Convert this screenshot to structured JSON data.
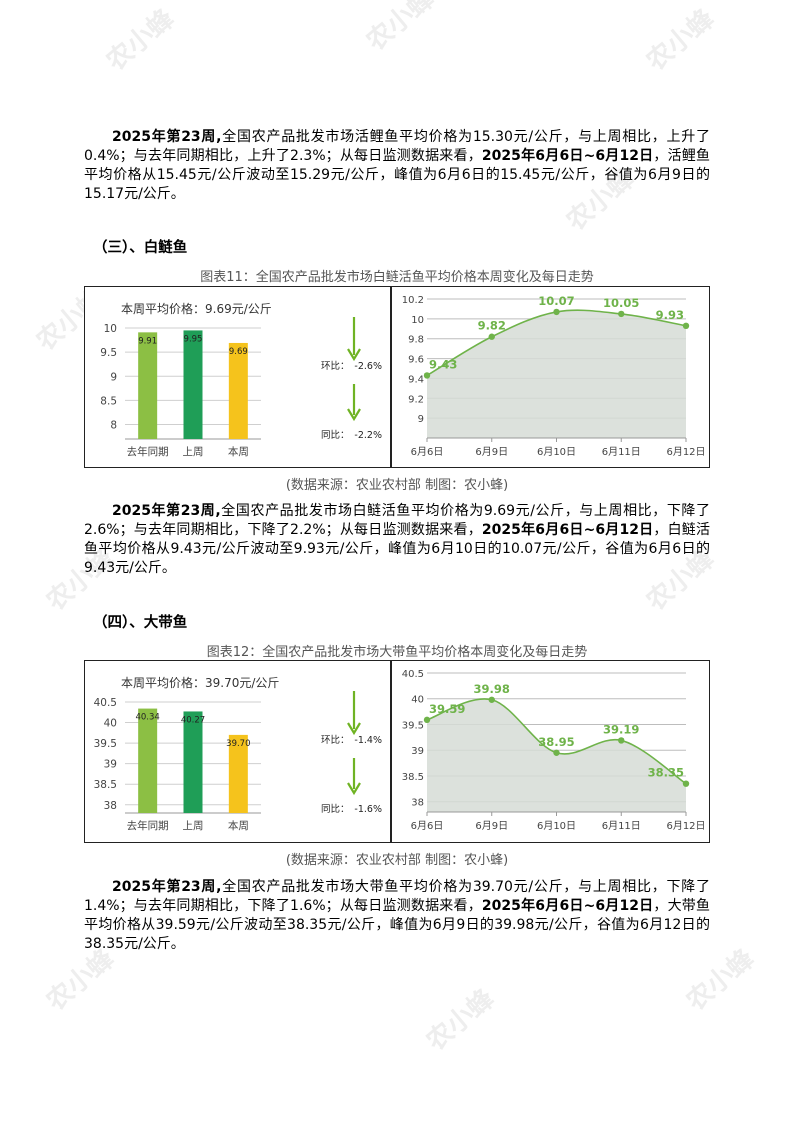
{
  "watermark": "农小蜂",
  "sections": [
    {
      "heading": "",
      "caption": "",
      "source": "",
      "para": {
        "b1": "2025年第23周,",
        "t1": "全国农产品批发市场活鲤鱼平均价格为15.30元/公斤，与上周相比，上升了0.4%；与去年同期相比，上升了2.3%；从每日监测数据来看，",
        "b2": "2025年6月6日~6月12日",
        "t2": "，活鲤鱼平均价格从15.45元/公斤波动至15.29元/公斤，峰值为6月6日的15.45元/公斤，谷值为6月9日的15.17元/公斤。"
      }
    },
    {
      "heading": "（三）、白鲢鱼",
      "caption": "图表11：全国农产品批发市场白鲢活鱼平均价格本周变化及每日走势",
      "source": "(数据来源：农业农村部    制图：农小蜂)",
      "para": {
        "b1": "2025年第23周,",
        "t1": "全国农产品批发市场白鲢活鱼平均价格为9.69元/公斤，与上周相比，下降了2.6%；与去年同期相比，下降了2.2%；从每日监测数据来看，",
        "b2": "2025年6月6日~6月12日",
        "t2": "，白鲢活鱼平均价格从9.43元/公斤波动至9.93元/公斤，峰值为6月10日的10.07元/公斤，谷值为6月6日的9.43元/公斤。"
      }
    },
    {
      "heading": "（四）、大带鱼",
      "caption": "图表12：全国农产品批发市场大带鱼平均价格本周变化及每日走势",
      "source": "(数据来源：农业农村部    制图：农小蜂)",
      "para": {
        "b1": "2025年第23周,",
        "t1": "全国农产品批发市场大带鱼平均价格为39.70元/公斤，与上周相比，下降了1.4%；与去年同期相比，下降了1.6%；从每日监测数据来看，",
        "b2": "2025年6月6日~6月12日",
        "t2": "，大带鱼平均价格从39.59元/公斤波动至38.35元/公斤，峰值为6月9日的39.98元/公斤，谷值为6月12日的38.35元/公斤。"
      }
    }
  ],
  "chart_data": [
    {
      "type": "bar",
      "title": "本周平均价格：9.69元/公斤",
      "categories": [
        "去年同期",
        "上周",
        "本周"
      ],
      "values": [
        9.91,
        9.95,
        9.69
      ],
      "value_labels": [
        "9.91",
        "9.95",
        "9.69"
      ],
      "ylim": [
        7.7,
        10
      ],
      "yticks": [
        8,
        8.5,
        9,
        9.5,
        10
      ],
      "ytick_labels": [
        "8",
        "8.5",
        "9",
        "9.5",
        "10"
      ],
      "colors": [
        "#8cbf44",
        "#1f9e57",
        "#f5c31c"
      ],
      "grid": true,
      "legend": "none",
      "annotations": [
        {
          "label": "环比：",
          "value": "-2.6%"
        },
        {
          "label": "同比：",
          "value": "-2.2%"
        }
      ],
      "arrow_color": "#6fb324"
    },
    {
      "type": "area",
      "x": [
        "6月6日",
        "6月9日",
        "6月10日",
        "6月11日",
        "6月12日"
      ],
      "values": [
        9.43,
        9.82,
        10.07,
        10.05,
        9.93
      ],
      "value_labels": [
        "9.43",
        "9.82",
        "10.07",
        "10.05",
        "9.93"
      ],
      "ylim": [
        8.8,
        10.2
      ],
      "yticks": [
        9,
        9.2,
        9.4,
        9.6,
        9.8,
        10,
        10.2
      ],
      "ytick_labels": [
        "9",
        "9.2",
        "9.4",
        "9.6",
        "9.8",
        "10",
        "10.2"
      ],
      "line_color": "#6fb34a",
      "fill_color": "#d6dcd6",
      "grid": true,
      "legend": "none"
    },
    {
      "type": "bar",
      "title": "本周平均价格：39.70元/公斤",
      "categories": [
        "去年同期",
        "上周",
        "本周"
      ],
      "values": [
        40.34,
        40.27,
        39.7
      ],
      "value_labels": [
        "40.34",
        "40.27",
        "39.70"
      ],
      "ylim": [
        37.8,
        40.5
      ],
      "yticks": [
        38,
        38.5,
        39,
        39.5,
        40,
        40.5
      ],
      "ytick_labels": [
        "38",
        "38.5",
        "39",
        "39.5",
        "40",
        "40.5"
      ],
      "colors": [
        "#8cbf44",
        "#1f9e57",
        "#f5c31c"
      ],
      "grid": true,
      "legend": "none",
      "annotations": [
        {
          "label": "环比：",
          "value": "-1.4%"
        },
        {
          "label": "同比：",
          "value": "-1.6%"
        }
      ],
      "arrow_color": "#6fb324"
    },
    {
      "type": "area",
      "x": [
        "6月6日",
        "6月9日",
        "6月10日",
        "6月11日",
        "6月12日"
      ],
      "values": [
        39.59,
        39.98,
        38.95,
        39.19,
        38.35
      ],
      "value_labels": [
        "39.59",
        "39.98",
        "38.95",
        "39.19",
        "38.35"
      ],
      "ylim": [
        37.8,
        40.5
      ],
      "yticks": [
        38,
        38.5,
        39,
        39.5,
        40,
        40.5
      ],
      "ytick_labels": [
        "38",
        "38.5",
        "39",
        "39.5",
        "40",
        "40.5"
      ],
      "line_color": "#6fb34a",
      "fill_color": "#d6dcd6",
      "grid": true,
      "legend": "none"
    }
  ]
}
